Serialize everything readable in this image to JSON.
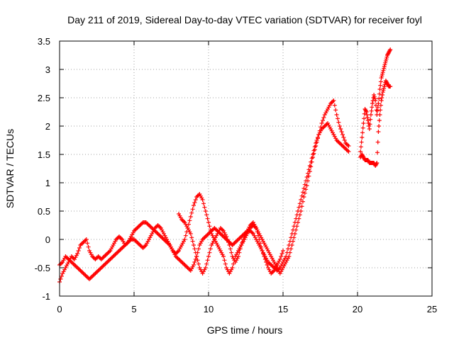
{
  "chart_data": {
    "type": "scatter",
    "title": "Day 211 of 2019, Sidereal Day-to-day VTEC variation (SDTVAR) for receiver foyl",
    "xlabel": "GPS time / hours",
    "ylabel": "SDTVAR / TECUs",
    "xlim": [
      0,
      25
    ],
    "ylim": [
      -1,
      3.5
    ],
    "xticks": [
      0,
      5,
      10,
      15,
      20,
      25
    ],
    "yticks": [
      -1,
      -0.5,
      0,
      0.5,
      1,
      1.5,
      2,
      2.5,
      3,
      3.5
    ],
    "xtick_labels": [
      "0",
      "5",
      "10",
      "15",
      "20",
      "25"
    ],
    "ytick_labels": [
      "-1",
      "-0.5",
      "0",
      "0.5",
      "1",
      "1.5",
      "2",
      "2.5",
      "3",
      "3.5"
    ],
    "grid": true,
    "marker": "plus",
    "color": "#ff0000",
    "series": [
      {
        "x": [
          0.0,
          0.2,
          0.4,
          0.6,
          0.8,
          1.0,
          1.2,
          1.4,
          1.6,
          1.8,
          2.0,
          2.2,
          2.4,
          2.6,
          2.8,
          3.0,
          3.2,
          3.4,
          3.6,
          3.8,
          4.0,
          4.2,
          4.4,
          4.6,
          4.8,
          5.0,
          5.2,
          5.4,
          5.6,
          5.8,
          6.0,
          6.2,
          6.4,
          6.6,
          6.8,
          7.0,
          7.2,
          7.4,
          7.6,
          7.8,
          8.0,
          8.2,
          8.4,
          8.6,
          8.8,
          9.0,
          9.2,
          9.4,
          9.6,
          9.8,
          10.0,
          10.2,
          10.4,
          10.6,
          10.8,
          11.0,
          11.2,
          11.4,
          11.6,
          11.8,
          12.0,
          12.2,
          12.4,
          12.6,
          12.8,
          13.0,
          13.2,
          13.4,
          13.6,
          13.8,
          14.0,
          14.2,
          14.4,
          14.6,
          14.8,
          15.0,
          15.2,
          15.4,
          15.6,
          15.8,
          16.0,
          16.2,
          16.4,
          16.6,
          16.8,
          17.0,
          17.2,
          17.4,
          17.6,
          17.8,
          18.0,
          18.2,
          18.4,
          18.6,
          18.8,
          19.0,
          19.2,
          19.4
        ],
        "y": [
          -0.75,
          -0.6,
          -0.5,
          -0.4,
          -0.3,
          -0.35,
          -0.25,
          -0.1,
          -0.05,
          0.0,
          -0.2,
          -0.3,
          -0.35,
          -0.3,
          -0.35,
          -0.3,
          -0.25,
          -0.2,
          -0.1,
          0.0,
          0.05,
          0.0,
          -0.1,
          -0.05,
          0.05,
          0.15,
          0.2,
          0.25,
          0.3,
          0.3,
          0.25,
          0.2,
          0.15,
          0.1,
          0.05,
          0.0,
          -0.05,
          -0.1,
          -0.2,
          -0.3,
          -0.35,
          -0.4,
          -0.45,
          -0.5,
          -0.55,
          -0.45,
          -0.3,
          -0.1,
          0.0,
          0.05,
          0.1,
          0.15,
          0.2,
          0.15,
          0.1,
          0.05,
          0.0,
          -0.05,
          -0.1,
          -0.05,
          0.0,
          0.05,
          0.1,
          0.15,
          0.15,
          0.1,
          0.0,
          -0.1,
          -0.2,
          -0.3,
          -0.4,
          -0.45,
          -0.5,
          -0.55,
          -0.5,
          -0.4,
          -0.3,
          -0.1,
          0.1,
          0.3,
          0.5,
          0.7,
          0.9,
          1.1,
          1.3,
          1.5,
          1.7,
          1.85,
          1.95,
          2.0,
          2.05,
          1.95,
          1.85,
          1.75,
          1.7,
          1.65,
          1.6,
          1.55
        ]
      },
      {
        "x": [
          0.0,
          0.2,
          0.4,
          0.6,
          0.8,
          1.0,
          1.2,
          1.4,
          1.6,
          1.8,
          2.0,
          2.2,
          2.4,
          2.6,
          2.8,
          3.0,
          3.2,
          3.4,
          3.6,
          3.8,
          4.0,
          4.2,
          4.4,
          4.6,
          4.8,
          5.0,
          5.2,
          5.4,
          5.6,
          5.8,
          6.0,
          6.2,
          6.4,
          6.6,
          6.8,
          7.0,
          7.2,
          7.4,
          7.6,
          7.8,
          8.0,
          8.2,
          8.4,
          8.6,
          8.8,
          9.0,
          9.2,
          9.4,
          9.6,
          9.8,
          10.0,
          10.2,
          10.4,
          10.6,
          10.8,
          11.0,
          11.2,
          11.4,
          11.6,
          11.8,
          12.0,
          12.2,
          12.4,
          12.6,
          12.8,
          13.0,
          13.2,
          13.4,
          13.6,
          13.8,
          14.0,
          14.2,
          14.4,
          14.6,
          14.8,
          15.0,
          15.2,
          15.4,
          15.6,
          15.8,
          16.0,
          16.2,
          16.4,
          16.6,
          16.8,
          17.0,
          17.2,
          17.4,
          17.6,
          17.8,
          18.0,
          18.2,
          18.4,
          18.6,
          18.8,
          19.0,
          19.2,
          19.4
        ],
        "y": [
          -0.45,
          -0.4,
          -0.3,
          -0.35,
          -0.4,
          -0.45,
          -0.5,
          -0.55,
          -0.6,
          -0.65,
          -0.7,
          -0.65,
          -0.6,
          -0.55,
          -0.5,
          -0.45,
          -0.4,
          -0.35,
          -0.3,
          -0.25,
          -0.2,
          -0.15,
          -0.1,
          -0.05,
          0.0,
          0.0,
          -0.05,
          -0.1,
          -0.15,
          -0.1,
          0.0,
          0.1,
          0.2,
          0.25,
          0.2,
          0.1,
          0.0,
          -0.1,
          -0.2,
          -0.25,
          -0.2,
          -0.1,
          0.0,
          0.2,
          0.4,
          0.6,
          0.75,
          0.8,
          0.7,
          0.5,
          0.3,
          0.1,
          0.0,
          -0.1,
          -0.2,
          -0.3,
          -0.5,
          -0.6,
          -0.5,
          -0.3,
          -0.2,
          -0.1,
          0.0,
          0.1,
          0.2,
          0.25,
          0.2,
          0.1,
          0.0,
          -0.1,
          -0.2,
          -0.3,
          -0.4,
          -0.5,
          -0.6,
          -0.5,
          -0.4,
          -0.3,
          -0.1,
          0.1,
          0.3,
          0.5,
          0.75,
          0.95,
          1.2,
          1.45,
          1.65,
          1.85,
          2.05,
          2.2,
          2.3,
          2.4,
          2.45,
          2.2,
          2.0,
          1.85,
          1.7,
          1.65
        ]
      },
      {
        "x": [
          8.0,
          8.2,
          8.4,
          8.6,
          8.8,
          9.0,
          9.2,
          9.4,
          9.6,
          9.8,
          10.0,
          10.2,
          10.4,
          10.6,
          10.8,
          11.0,
          11.2,
          11.4,
          11.6,
          11.8,
          12.0,
          12.2,
          12.4,
          12.6,
          12.8,
          13.0,
          13.2,
          13.4,
          13.6,
          13.8,
          14.0,
          14.2,
          14.4,
          14.6,
          14.8,
          15.0
        ],
        "y": [
          0.45,
          0.35,
          0.3,
          0.2,
          0.1,
          -0.1,
          -0.3,
          -0.5,
          -0.6,
          -0.5,
          -0.3,
          -0.1,
          0.0,
          0.1,
          0.2,
          0.15,
          0.05,
          -0.1,
          -0.3,
          -0.4,
          -0.3,
          -0.1,
          0.05,
          0.15,
          0.25,
          0.3,
          0.2,
          0.0,
          -0.2,
          -0.35,
          -0.5,
          -0.6,
          -0.55,
          -0.45,
          -0.35,
          -0.2
        ]
      },
      {
        "x": [
          20.2,
          20.3,
          20.4,
          20.5,
          20.6,
          20.7,
          20.8,
          20.9,
          21.0,
          21.1,
          21.2,
          21.3,
          21.4,
          21.5,
          21.6,
          21.7,
          21.8,
          21.9,
          22.0,
          22.1,
          22.2
        ],
        "y": [
          1.55,
          1.8,
          2.05,
          2.3,
          2.25,
          2.1,
          1.95,
          2.2,
          2.4,
          2.55,
          2.45,
          2.2,
          2.4,
          2.65,
          2.85,
          2.95,
          3.05,
          3.15,
          3.25,
          3.3,
          3.35
        ]
      },
      {
        "x": [
          20.2,
          20.3,
          20.4,
          20.5,
          20.6,
          20.7,
          20.8,
          20.9,
          21.0,
          21.1,
          21.2,
          21.3,
          21.4,
          21.5,
          21.6,
          21.7,
          21.8,
          21.9,
          22.0,
          22.1,
          22.2
        ],
        "y": [
          1.45,
          1.5,
          1.45,
          1.4,
          1.4,
          1.4,
          1.35,
          1.35,
          1.35,
          1.35,
          1.3,
          1.35,
          1.9,
          2.2,
          2.45,
          2.6,
          2.7,
          2.8,
          2.75,
          2.7,
          2.7
        ]
      }
    ]
  }
}
